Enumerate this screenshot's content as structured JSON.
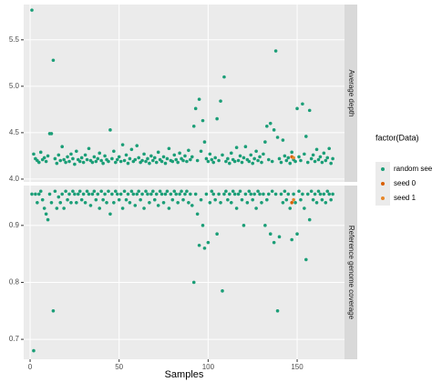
{
  "chart_data": [
    {
      "type": "scatter",
      "facet_label": "Average depth",
      "legend_title": "factor(Data)",
      "xlim": [
        -3.6,
        176.6
      ],
      "ylim": [
        3.97,
        5.88
      ],
      "yticks": [
        {
          "value": 4,
          "label": "4.0"
        },
        4.5,
        {
          "value": 5,
          "label": "5.0"
        },
        5.5
      ],
      "grid": true,
      "series": [
        {
          "name": "random seed",
          "color": "#1b9e77",
          "x": [
            1,
            2,
            3,
            4,
            5,
            6,
            7,
            8,
            9,
            10,
            11,
            12,
            13,
            14,
            15,
            16,
            17,
            18,
            19,
            20,
            21,
            22,
            23,
            24,
            25,
            26,
            27,
            28,
            29,
            30,
            31,
            32,
            33,
            34,
            35,
            36,
            37,
            38,
            39,
            40,
            41,
            42,
            43,
            44,
            45,
            46,
            47,
            48,
            49,
            50,
            51,
            52,
            53,
            54,
            55,
            56,
            57,
            58,
            59,
            60,
            61,
            62,
            63,
            64,
            65,
            66,
            67,
            68,
            69,
            70,
            71,
            72,
            73,
            74,
            75,
            76,
            77,
            78,
            79,
            80,
            81,
            82,
            83,
            84,
            85,
            86,
            87,
            88,
            89,
            90,
            91,
            92,
            93,
            94,
            95,
            96,
            97,
            98,
            99,
            100,
            101,
            102,
            103,
            104,
            105,
            106,
            107,
            108,
            109,
            110,
            111,
            112,
            113,
            114,
            115,
            116,
            117,
            118,
            119,
            120,
            121,
            122,
            123,
            124,
            125,
            126,
            127,
            128,
            129,
            130,
            131,
            132,
            133,
            134,
            135,
            136,
            137,
            138,
            139,
            140,
            141,
            142,
            143,
            144,
            145,
            146,
            147,
            148,
            149,
            150,
            151,
            152,
            153,
            154,
            155,
            156,
            157,
            158,
            159,
            160,
            161,
            162,
            163,
            164,
            165,
            166,
            167,
            168,
            169,
            170
          ],
          "values": [
            5.82,
            4.27,
            4.22,
            4.2,
            4.18,
            4.29,
            4.21,
            4.23,
            4.19,
            4.25,
            4.49,
            4.49,
            5.28,
            4.22,
            4.17,
            4.26,
            4.2,
            4.35,
            4.21,
            4.18,
            4.24,
            4.19,
            4.27,
            4.22,
            4.16,
            4.3,
            4.21,
            4.19,
            4.23,
            4.18,
            4.26,
            4.21,
            4.33,
            4.2,
            4.18,
            4.24,
            4.19,
            4.22,
            4.28,
            4.2,
            4.17,
            4.25,
            4.21,
            4.19,
            4.53,
            4.22,
            4.3,
            4.18,
            4.21,
            4.24,
            4.19,
            4.37,
            4.2,
            4.26,
            4.17,
            4.22,
            4.32,
            4.19,
            4.21,
            4.36,
            4.23,
            4.18,
            4.2,
            4.27,
            4.19,
            4.22,
            4.17,
            4.25,
            4.2,
            4.23,
            4.18,
            4.29,
            4.21,
            4.19,
            4.24,
            4.17,
            4.22,
            4.33,
            4.2,
            4.19,
            4.26,
            4.21,
            4.18,
            4.28,
            4.22,
            4.2,
            4.25,
            4.19,
            4.31,
            4.21,
            4.24,
            4.57,
            4.76,
            4.2,
            4.86,
            4.3,
            4.63,
            4.4,
            4.22,
            4.19,
            4.27,
            4.21,
            4.18,
            4.23,
            4.65,
            4.2,
            4.84,
            4.26,
            5.1,
            4.19,
            4.22,
            4.17,
            4.28,
            4.21,
            4.19,
            4.34,
            4.2,
            4.25,
            4.18,
            4.23,
            4.35,
            4.21,
            4.19,
            4.26,
            4.17,
            4.22,
            4.3,
            4.2,
            4.24,
            4.18,
            4.27,
            4.4,
            4.57,
            4.21,
            4.6,
            4.19,
            4.53,
            5.38,
            4.45,
            4.22,
            4.18,
            4.42,
            4.25,
            4.2,
            4.23,
            4.17,
            4.29,
            4.21,
            4.19,
            4.76,
            4.24,
            4.2,
            4.81,
            4.27,
            4.46,
            4.18,
            4.74,
            4.22,
            4.26,
            4.19,
            4.32,
            4.21,
            4.24,
            4.18,
            4.28,
            4.2,
            4.23,
            4.33,
            4.17,
            4.22
          ]
        },
        {
          "name": "seed 0",
          "color": "#d95f02",
          "x": [
            147
          ],
          "values": [
            4.24
          ]
        },
        {
          "name": "seed 1",
          "color": "#e6862a",
          "x": [
            148
          ],
          "values": [
            4.23
          ]
        }
      ]
    },
    {
      "type": "scatter",
      "facet_label": "Reference genome coverage",
      "x_label": "Samples",
      "xlim": [
        -3.6,
        176.6
      ],
      "ylim": [
        0.665,
        0.97
      ],
      "xticks": [
        0,
        50,
        100,
        150
      ],
      "yticks": [
        0.7,
        0.8,
        0.9
      ],
      "grid": true,
      "series": [
        {
          "name": "random seed",
          "color": "#1b9e77",
          "x": [
            1,
            2,
            3,
            4,
            5,
            6,
            7,
            8,
            9,
            10,
            11,
            12,
            13,
            14,
            15,
            16,
            17,
            18,
            19,
            20,
            21,
            22,
            23,
            24,
            25,
            26,
            27,
            28,
            29,
            30,
            31,
            32,
            33,
            34,
            35,
            36,
            37,
            38,
            39,
            40,
            41,
            42,
            43,
            44,
            45,
            46,
            47,
            48,
            49,
            50,
            51,
            52,
            53,
            54,
            55,
            56,
            57,
            58,
            59,
            60,
            61,
            62,
            63,
            64,
            65,
            66,
            67,
            68,
            69,
            70,
            71,
            72,
            73,
            74,
            75,
            76,
            77,
            78,
            79,
            80,
            81,
            82,
            83,
            84,
            85,
            86,
            87,
            88,
            89,
            90,
            91,
            92,
            93,
            94,
            95,
            96,
            97,
            98,
            99,
            100,
            101,
            102,
            103,
            104,
            105,
            106,
            107,
            108,
            109,
            110,
            111,
            112,
            113,
            114,
            115,
            116,
            117,
            118,
            119,
            120,
            121,
            122,
            123,
            124,
            125,
            126,
            127,
            128,
            129,
            130,
            131,
            132,
            133,
            134,
            135,
            136,
            137,
            138,
            139,
            140,
            141,
            142,
            143,
            144,
            145,
            146,
            147,
            148,
            149,
            150,
            151,
            152,
            153,
            154,
            155,
            156,
            157,
            158,
            159,
            160,
            161,
            162,
            163,
            164,
            165,
            166,
            167,
            168,
            169,
            170
          ],
          "values": [
            0.955,
            0.68,
            0.955,
            0.94,
            0.955,
            0.96,
            0.945,
            0.93,
            0.92,
            0.91,
            0.955,
            0.94,
            0.75,
            0.96,
            0.93,
            0.95,
            0.94,
            0.955,
            0.93,
            0.96,
            0.945,
            0.955,
            0.94,
            0.96,
            0.955,
            0.94,
            0.955,
            0.96,
            0.945,
            0.955,
            0.94,
            0.96,
            0.955,
            0.935,
            0.955,
            0.96,
            0.945,
            0.955,
            0.93,
            0.96,
            0.945,
            0.955,
            0.94,
            0.96,
            0.92,
            0.955,
            0.94,
            0.96,
            0.955,
            0.945,
            0.955,
            0.93,
            0.96,
            0.945,
            0.955,
            0.94,
            0.96,
            0.955,
            0.935,
            0.955,
            0.96,
            0.945,
            0.955,
            0.93,
            0.96,
            0.955,
            0.94,
            0.955,
            0.96,
            0.945,
            0.955,
            0.935,
            0.96,
            0.955,
            0.94,
            0.955,
            0.96,
            0.93,
            0.955,
            0.945,
            0.96,
            0.955,
            0.94,
            0.955,
            0.96,
            0.945,
            0.955,
            0.96,
            0.94,
            0.955,
            0.935,
            0.8,
            0.955,
            0.92,
            0.865,
            0.945,
            0.9,
            0.86,
            0.955,
            0.87,
            0.94,
            0.96,
            0.955,
            0.945,
            0.885,
            0.955,
            0.94,
            0.785,
            0.955,
            0.96,
            0.945,
            0.955,
            0.94,
            0.96,
            0.955,
            0.93,
            0.955,
            0.96,
            0.945,
            0.9,
            0.955,
            0.94,
            0.96,
            0.955,
            0.945,
            0.955,
            0.93,
            0.96,
            0.955,
            0.94,
            0.955,
            0.9,
            0.945,
            0.955,
            0.885,
            0.96,
            0.87,
            0.955,
            0.75,
            0.88,
            0.955,
            0.94,
            0.96,
            0.945,
            0.955,
            0.93,
            0.875,
            0.955,
            0.94,
            0.885,
            0.96,
            0.945,
            0.955,
            0.93,
            0.84,
            0.955,
            0.91,
            0.96,
            0.945,
            0.955,
            0.94,
            0.96,
            0.955,
            0.945,
            0.955,
            0.94,
            0.96,
            0.955,
            0.945,
            0.955
          ]
        },
        {
          "name": "seed 0",
          "color": "#d95f02",
          "x": [
            147
          ],
          "values": [
            0.94
          ]
        },
        {
          "name": "seed 1",
          "color": "#e6862a",
          "x": [
            148
          ],
          "values": [
            0.945
          ]
        }
      ]
    }
  ]
}
